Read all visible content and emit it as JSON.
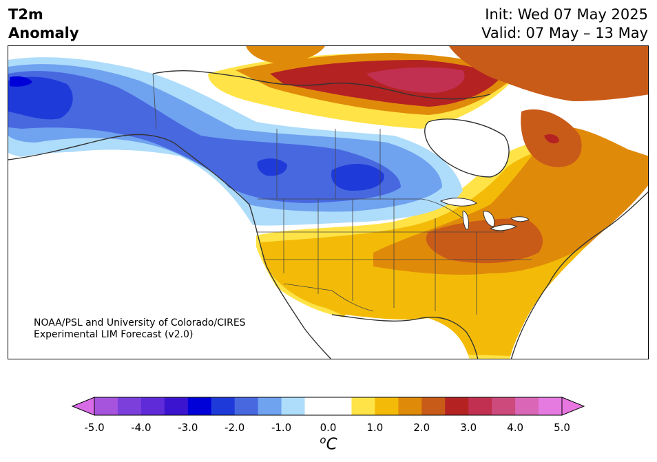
{
  "header": {
    "title_line1": "T2m",
    "title_line2": "Anomaly",
    "init_text": "Init: Wed 07 May 2025",
    "valid_text": "Valid: 07 May – 13 May"
  },
  "credit": {
    "line1": "NOAA/PSL and University of Colorado/CIRES",
    "line2": "Experimental LIM Forecast (v2.0)"
  },
  "colorbar": {
    "unit_symbol": "o",
    "unit_letter": "C",
    "tick_labels": [
      "-5.0",
      "-4.0",
      "-3.0",
      "-2.0",
      "-1.0",
      "0.0",
      "1.0",
      "2.0",
      "3.0",
      "4.0",
      "5.0"
    ],
    "tick_values": [
      -5,
      -4,
      -3,
      -2,
      -1,
      0,
      1,
      2,
      3,
      4,
      5
    ],
    "min": -5.0,
    "max": 5.0,
    "step": 0.5,
    "extend": "both",
    "colors": [
      "#a653de",
      "#7c3fdc",
      "#5f2ad8",
      "#3a14cf",
      "#0000d9",
      "#1e3ad9",
      "#4868e0",
      "#6fa2ef",
      "#aedcfb",
      "#ffffff",
      "#ffffff",
      "#ffe347",
      "#f3bb07",
      "#e08a0a",
      "#c95b18",
      "#b42222",
      "#c13050",
      "#cc4a7c",
      "#d966b6",
      "#e57be0"
    ],
    "under_color": "#d86ce6",
    "over_color": "#e876e0"
  },
  "map": {
    "region": "North America",
    "palette": {
      "dark_red": "#b42222",
      "red_orange": "#c95b18",
      "orange": "#e08a0a",
      "gold": "#f3bb07",
      "yellow": "#ffe347",
      "light_blue": "#aedcfb",
      "sky_blue": "#6fa2ef",
      "mid_blue": "#4868e0",
      "blue": "#1e3ad9",
      "deep_blue": "#0000d9",
      "pink_red": "#c13050",
      "coastline": "#333333"
    }
  }
}
